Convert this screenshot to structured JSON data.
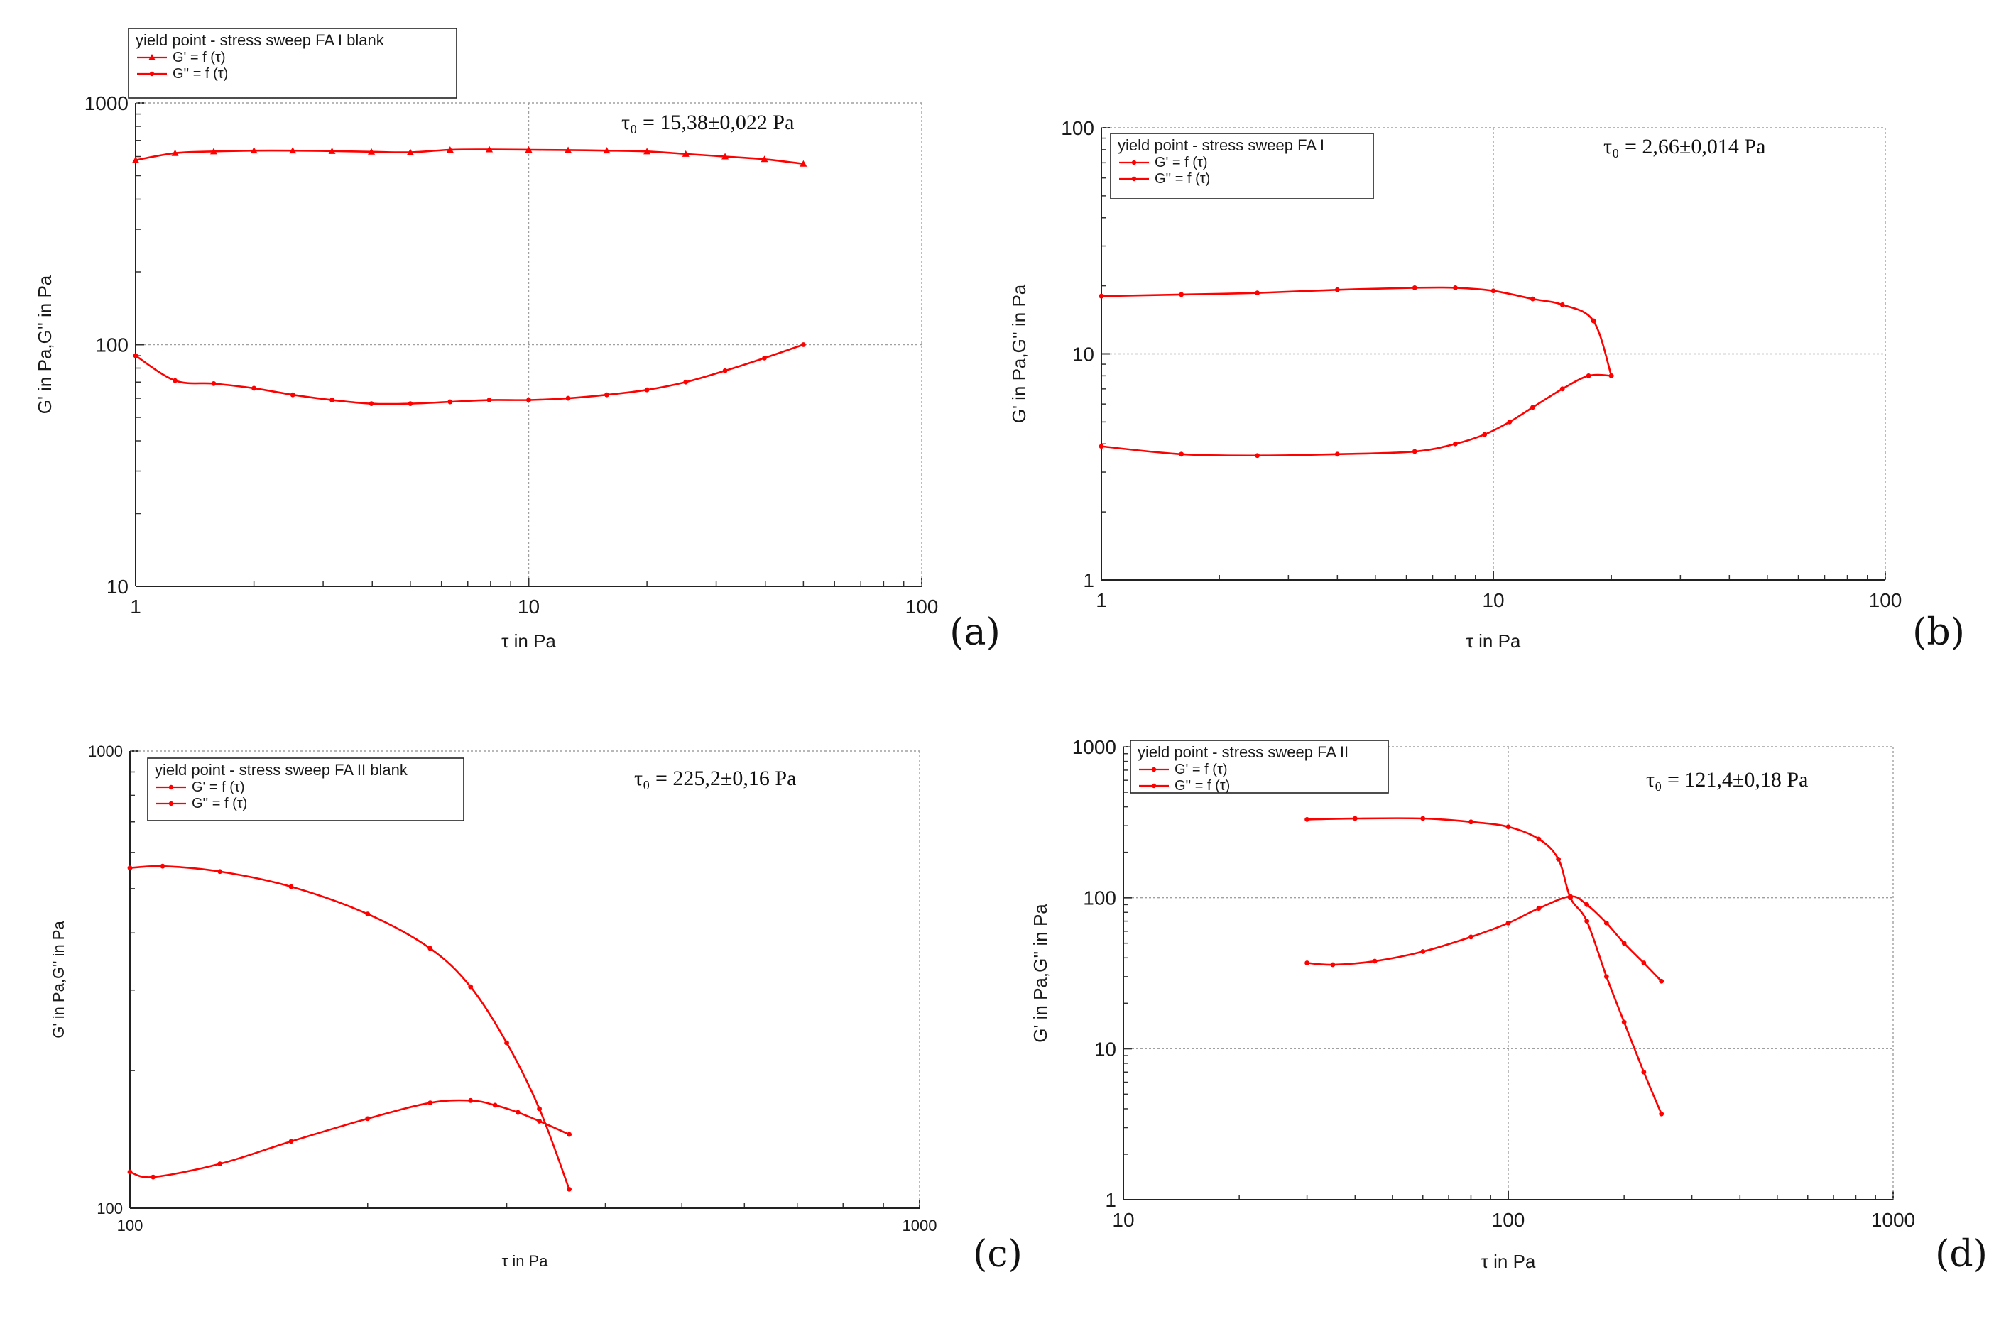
{
  "figure": {
    "accent_color": "#ff0000",
    "grid_color": "#a0a0a0"
  },
  "chart_data": [
    {
      "panel": "(a)",
      "type": "line",
      "scale": "log-log",
      "title": "",
      "legend_title": "yield point - stress sweep FA I blank",
      "legend_position": "top-left, above plot",
      "xlabel": "τ in Pa",
      "ylabel": "G' in Pa,G'' in Pa",
      "xlim": [
        1,
        100
      ],
      "ylim": [
        10,
        1000
      ],
      "xticks": [
        "1",
        "10",
        "100"
      ],
      "yticks": [
        "10",
        "100",
        "1000"
      ],
      "grid": true,
      "annotation": "τ₀ = 15,38±0,022 Pa",
      "series": [
        {
          "name": "G' = f (τ)",
          "marker": "triangle",
          "x": [
            1,
            1.26,
            1.58,
            2.0,
            2.51,
            3.16,
            3.98,
            5.0,
            6.31,
            7.94,
            10,
            12.6,
            15.8,
            20,
            25.1,
            31.6,
            39.8,
            50
          ],
          "y": [
            580,
            620,
            630,
            635,
            635,
            632,
            628,
            625,
            640,
            642,
            640,
            638,
            635,
            630,
            615,
            600,
            585,
            560
          ]
        },
        {
          "name": "G'' = f (τ)",
          "marker": "dot",
          "x": [
            1,
            1.26,
            1.58,
            2.0,
            2.51,
            3.16,
            3.98,
            5.0,
            6.31,
            7.94,
            10,
            12.6,
            15.8,
            20,
            25.1,
            31.6,
            39.8,
            50
          ],
          "y": [
            90,
            71,
            69,
            66,
            62,
            59,
            57,
            57,
            58,
            59,
            59,
            60,
            62,
            65,
            70,
            78,
            88,
            100
          ]
        }
      ]
    },
    {
      "panel": "(b)",
      "type": "line",
      "scale": "log-log",
      "title": "",
      "legend_title": "yield point - stress sweep FA I",
      "legend_position": "top-left",
      "xlabel": "τ in Pa",
      "ylabel": "G' in Pa,G'' in Pa",
      "xlim": [
        1,
        100
      ],
      "ylim": [
        1,
        100
      ],
      "xticks": [
        "1",
        "10",
        "100"
      ],
      "yticks": [
        "1",
        "10",
        "100"
      ],
      "grid": true,
      "annotation": "τ₀ = 2,66±0,014 Pa",
      "series": [
        {
          "name": "G' = f (τ)",
          "marker": "dot",
          "x": [
            1,
            1.6,
            2.5,
            4,
            6.3,
            8,
            10,
            12.6,
            15,
            18,
            20
          ],
          "y": [
            18,
            18.3,
            18.6,
            19.2,
            19.6,
            19.6,
            19.0,
            17.5,
            16.5,
            14,
            8
          ]
        },
        {
          "name": "G'' = f (τ)",
          "marker": "dot",
          "x": [
            1,
            1.6,
            2.5,
            4,
            6.3,
            8,
            9.5,
            11,
            12.6,
            15,
            17.5,
            20
          ],
          "y": [
            3.9,
            3.6,
            3.55,
            3.6,
            3.7,
            4.0,
            4.4,
            5.0,
            5.8,
            7.0,
            8.0,
            8.0
          ]
        }
      ]
    },
    {
      "panel": "(c)",
      "type": "line",
      "scale": "log-log",
      "title": "",
      "legend_title": "yield point - stress sweep FA II blank",
      "legend_position": "top-left",
      "xlabel": "τ in Pa",
      "ylabel": "G' in Pa,G'' in Pa",
      "xlim": [
        100,
        1000
      ],
      "ylim": [
        100,
        1000
      ],
      "xticks": [
        "100",
        "1000"
      ],
      "yticks": [
        "100",
        "1000"
      ],
      "grid": true,
      "annotation": "τ₀ = 225,2±0,16 Pa",
      "series": [
        {
          "name": "G' = f (τ)",
          "marker": "dot",
          "x": [
            100,
            110,
            130,
            160,
            200,
            240,
            270,
            300,
            330,
            360
          ],
          "y": [
            555,
            560,
            545,
            505,
            440,
            370,
            305,
            230,
            165,
            110
          ]
        },
        {
          "name": "G'' = f (τ)",
          "marker": "dot",
          "x": [
            100,
            107,
            130,
            160,
            200,
            240,
            270,
            290,
            310,
            330,
            360
          ],
          "y": [
            120,
            117,
            125,
            140,
            157,
            170,
            172,
            168,
            162,
            155,
            145
          ]
        }
      ]
    },
    {
      "panel": "(d)",
      "type": "line",
      "scale": "log-log",
      "title": "",
      "legend_title": "yield point - stress sweep FA II",
      "legend_position": "top-left",
      "xlabel": "τ in Pa",
      "ylabel": "G' in Pa,G'' in Pa",
      "xlim": [
        10,
        1000
      ],
      "ylim": [
        1,
        1000
      ],
      "xticks": [
        "10",
        "100",
        "1000"
      ],
      "yticks": [
        "1",
        "10",
        "100",
        "1000"
      ],
      "grid": true,
      "annotation": "τ₀ = 121,4±0,18 Pa",
      "series": [
        {
          "name": "G' = f (τ)",
          "marker": "dot",
          "x": [
            30,
            40,
            60,
            80,
            100,
            120,
            135,
            145,
            160,
            180,
            200,
            225,
            250
          ],
          "y": [
            330,
            335,
            335,
            318,
            295,
            245,
            180,
            100,
            70,
            30,
            15,
            7,
            3.7
          ]
        },
        {
          "name": "G'' = f (τ)",
          "marker": "dot",
          "x": [
            30,
            35,
            45,
            60,
            80,
            100,
            120,
            145,
            160,
            180,
            200,
            225,
            250
          ],
          "y": [
            37,
            36,
            38,
            44,
            55,
            68,
            85,
            102,
            90,
            68,
            50,
            37,
            28
          ]
        }
      ]
    }
  ]
}
